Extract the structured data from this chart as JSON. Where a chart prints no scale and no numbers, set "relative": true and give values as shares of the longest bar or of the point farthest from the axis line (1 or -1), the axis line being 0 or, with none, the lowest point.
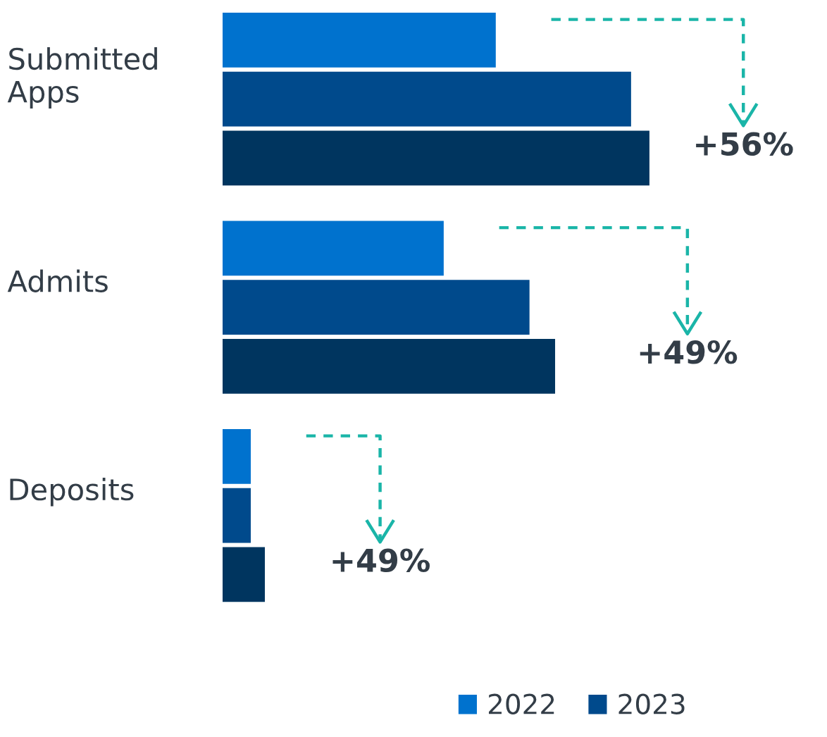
{
  "chart_data": {
    "type": "bar",
    "orientation": "horizontal",
    "relative": true,
    "categories": [
      "Submitted\nApps",
      "Admits",
      "Deposits"
    ],
    "series": [
      {
        "name": "2022",
        "color": "#0072ce",
        "values": [
          0.64,
          0.518,
          0.066
        ]
      },
      {
        "name": "2023",
        "color": "#004a8c",
        "values": [
          0.957,
          0.719,
          0.066
        ]
      },
      {
        "color": "#00355f",
        "values": [
          1.0,
          0.779,
          0.099
        ]
      }
    ],
    "annotations": [
      "+56%",
      "+49%",
      "+49%"
    ],
    "legend": "bottom right",
    "grid": false
  }
}
